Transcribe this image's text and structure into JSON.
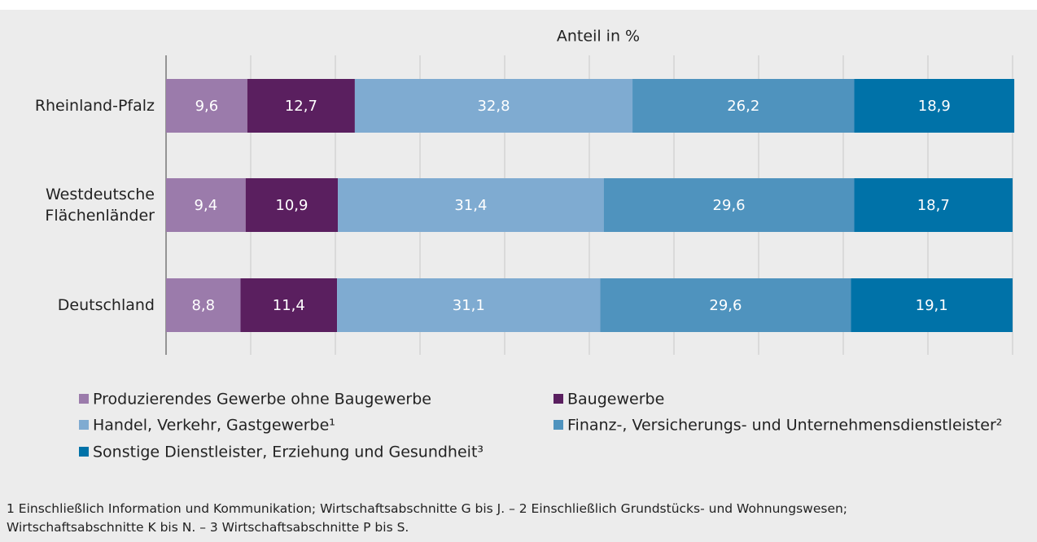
{
  "chart_data": {
    "type": "stacked_barh",
    "axis_label": "Anteil in %",
    "categories": [
      "Rheinland-Pfalz",
      "Westdeutsche Flächenländer",
      "Deutschland"
    ],
    "series": [
      {
        "name": "Produzierendes Gewerbe ohne Baugewerbe",
        "color": "#9b7bab",
        "values": [
          9.6,
          9.4,
          8.8
        ],
        "value_labels": [
          "9,6",
          "9,4",
          "8,8"
        ]
      },
      {
        "name": "Baugewerbe",
        "color": "#5a1f5f",
        "values": [
          12.7,
          10.9,
          11.4
        ],
        "value_labels": [
          "12,7",
          "10,9",
          "11,4"
        ]
      },
      {
        "name": "Handel, Verkehr, Gastgewerbe¹",
        "color": "#7fabd1",
        "values": [
          32.8,
          31.4,
          31.1
        ],
        "value_labels": [
          "32,8",
          "31,4",
          "31,1"
        ]
      },
      {
        "name": "Finanz-, Versicherungs- und Unternehmensdienstleister²",
        "color": "#4f93be",
        "values": [
          26.2,
          29.6,
          29.6
        ],
        "value_labels": [
          "26,2",
          "29,6",
          "29,6"
        ]
      },
      {
        "name": "Sonstige Dienstleister, Erziehung und Gesundheit³",
        "color": "#0072a8",
        "values": [
          18.9,
          18.7,
          19.1
        ],
        "value_labels": [
          "18,9",
          "18,7",
          "19,1"
        ]
      }
    ],
    "xlim": [
      0,
      100
    ],
    "xticks": [
      0,
      10,
      20,
      30,
      40,
      50,
      60,
      70,
      80,
      90,
      100
    ],
    "grid": true,
    "footnote": "1 Einschließlich Information und Kommunikation; Wirtschaftsabschnitte G bis J. – 2 Einschließlich Grundstücks- und Wohnungswesen; Wirtschaftsabschnitte K bis N. – 3 Wirtschaftsabschnitte P bis S."
  }
}
